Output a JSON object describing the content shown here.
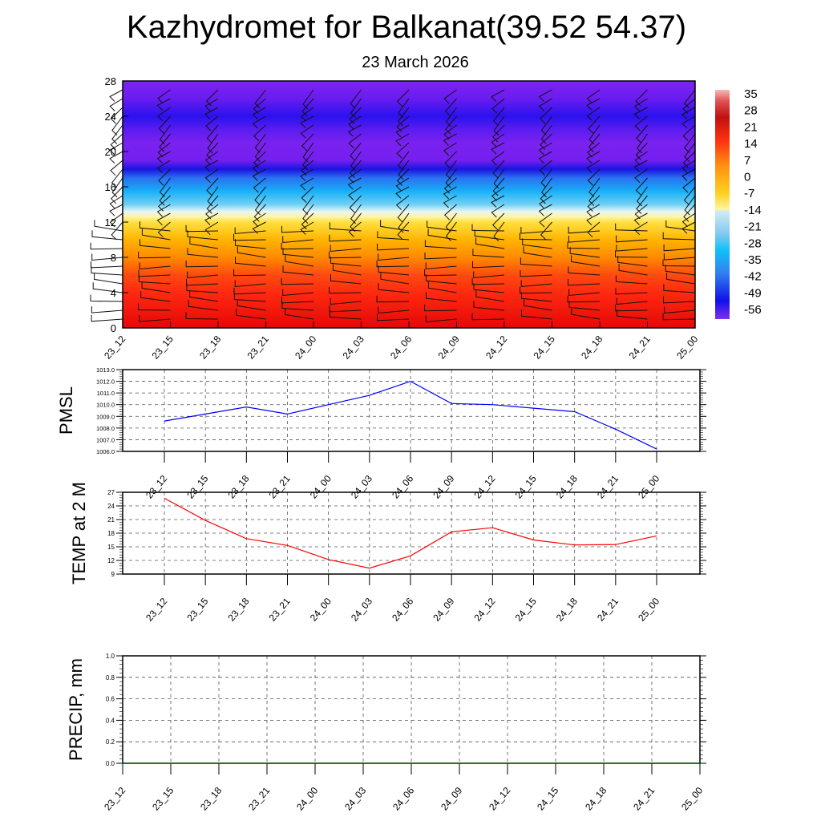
{
  "title": "Kazhydromet for Balkanat(39.52 54.37)",
  "subtitle": "23 March 2026",
  "chart_data": [
    {
      "type": "heatmap",
      "name": "temperature-height cross-section with wind barbs",
      "x_tick_labels": [
        "23_12",
        "23_15",
        "23_18",
        "23_21",
        "24_00",
        "24_03",
        "24_06",
        "24_09",
        "24_12",
        "24_15",
        "24_18",
        "24_21",
        "25_00"
      ],
      "y_ticks": [
        0,
        4,
        8,
        12,
        16,
        20,
        24,
        28
      ],
      "ylim": [
        0,
        28
      ],
      "colorbar_labels": [
        "35",
        "28",
        "21",
        "14",
        "7",
        "0",
        "-7",
        "-14",
        "-21",
        "-28",
        "-35",
        "-42",
        "-49",
        "-56"
      ],
      "colorbar_range": [
        -60,
        38
      ]
    },
    {
      "type": "line",
      "ylabel": "PMSL",
      "x_tick_labels": [
        "23_12",
        "23_15",
        "23_18",
        "23_21",
        "24_00",
        "24_03",
        "24_06",
        "24_09",
        "24_12",
        "24_15",
        "24_18",
        "24_21",
        "25_00"
      ],
      "y_tick_labels": [
        "1006.0",
        "1007.0",
        "1008.0",
        "1009.0",
        "1010.0",
        "1011.0",
        "1012.0",
        "1013.0"
      ],
      "ylim": [
        1006,
        1013
      ],
      "color": "#0000ff",
      "values": [
        1008.6,
        1009.2,
        1009.8,
        1009.2,
        1010.0,
        1010.8,
        1012.0,
        1010.1,
        1010.0,
        1009.7,
        1009.4,
        1007.9,
        1006.2
      ]
    },
    {
      "type": "line",
      "ylabel": "TEMP at 2 M",
      "x_tick_labels": [
        "23_12",
        "23_15",
        "23_18",
        "23_21",
        "24_00",
        "24_03",
        "24_06",
        "24_09",
        "24_12",
        "24_15",
        "24_18",
        "24_21",
        "25_00"
      ],
      "y_tick_labels": [
        "9",
        "12",
        "15",
        "18",
        "21",
        "24",
        "27"
      ],
      "ylim": [
        9,
        27
      ],
      "color": "#ff0000",
      "values": [
        25.7,
        20.8,
        16.8,
        15.3,
        12.2,
        10.3,
        13.0,
        18.3,
        19.2,
        16.5,
        15.4,
        15.5,
        17.4
      ]
    },
    {
      "type": "line",
      "ylabel": "PRECIP, mm",
      "x_tick_labels": [
        "23_12",
        "23_15",
        "23_18",
        "23_21",
        "24_00",
        "24_03",
        "24_06",
        "24_09",
        "24_12",
        "24_15",
        "24_18",
        "24_21",
        "25_00"
      ],
      "y_tick_labels": [
        "0.0",
        "0.2",
        "0.4",
        "0.6",
        "0.8",
        "1.0"
      ],
      "ylim": [
        0,
        1
      ],
      "color": "#006400",
      "values": [
        0,
        0,
        0,
        0,
        0,
        0,
        0,
        0,
        0,
        0,
        0,
        0,
        0
      ]
    }
  ]
}
